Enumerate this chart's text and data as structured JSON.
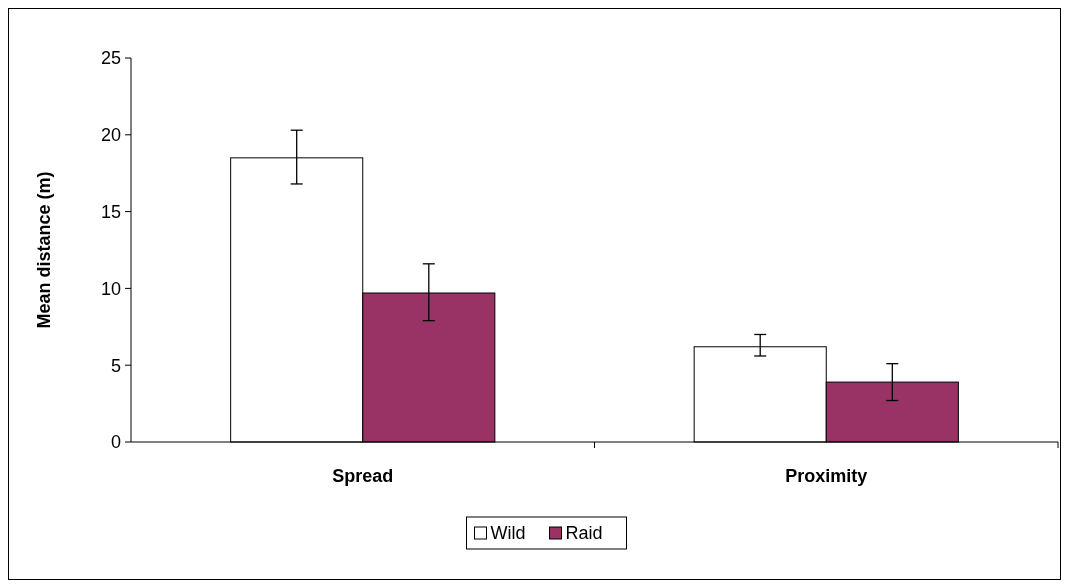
{
  "chart_data": {
    "type": "bar",
    "ylabel": "Mean distance (m)",
    "categories": [
      "Spread",
      "Proximity"
    ],
    "series": [
      {
        "name": "Wild",
        "color": "#ffffff",
        "values": [
          18.5,
          6.2
        ],
        "errors": [
          [
            16.8,
            20.3
          ],
          [
            5.6,
            7.0
          ]
        ]
      },
      {
        "name": "Raid",
        "color": "#993366",
        "values": [
          9.7,
          3.9
        ],
        "errors": [
          [
            7.9,
            11.6
          ],
          [
            2.7,
            5.1
          ]
        ]
      }
    ],
    "ylim": [
      0,
      25
    ],
    "yticks": [
      0,
      5,
      10,
      15,
      20,
      25
    ],
    "legend": "bottom",
    "grid": false
  }
}
